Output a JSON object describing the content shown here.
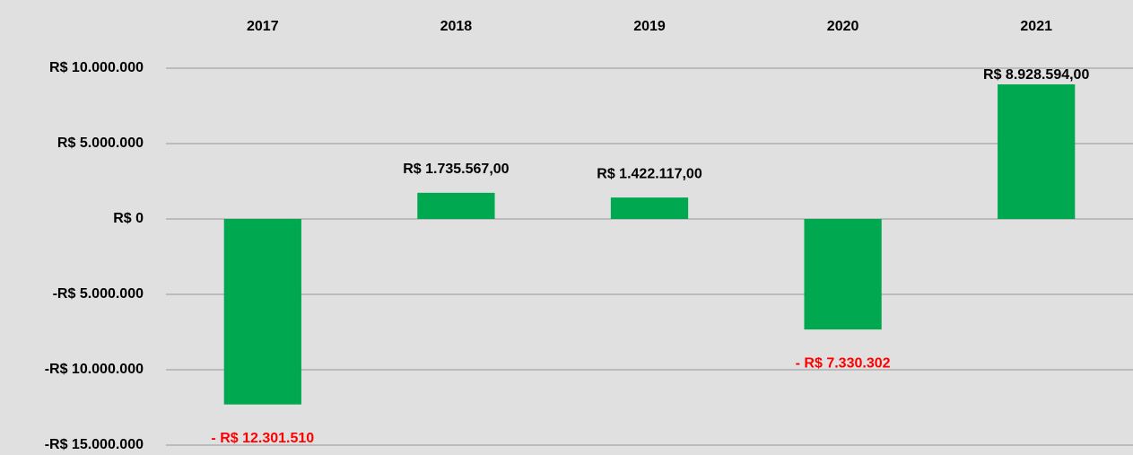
{
  "chart_data": {
    "type": "bar",
    "categories": [
      "2017",
      "2018",
      "2019",
      "2020",
      "2021"
    ],
    "values": [
      -12301510,
      1735567,
      1422117,
      -7330302,
      8928594
    ],
    "value_labels": [
      "-  R$ 12.301.510",
      "R$ 1.735.567,00",
      "R$ 1.422.117,00",
      "-  R$ 7.330.302",
      "R$ 8.928.594,00"
    ],
    "color": "#00a84f",
    "negative_label_color": "#ff0000",
    "ylim": [
      -15000000,
      10000000
    ],
    "yticks": [
      {
        "value": -15000000,
        "label": "-R$ 15.000.000"
      },
      {
        "value": -10000000,
        "label": "-R$ 10.000.000"
      },
      {
        "value": -5000000,
        "label": "-R$ 5.000.000"
      },
      {
        "value": 0,
        "label": "R$ 0"
      },
      {
        "value": 5000000,
        "label": "R$ 5.000.000"
      },
      {
        "value": 10000000,
        "label": "R$ 10.000.000"
      }
    ],
    "grid": true
  }
}
